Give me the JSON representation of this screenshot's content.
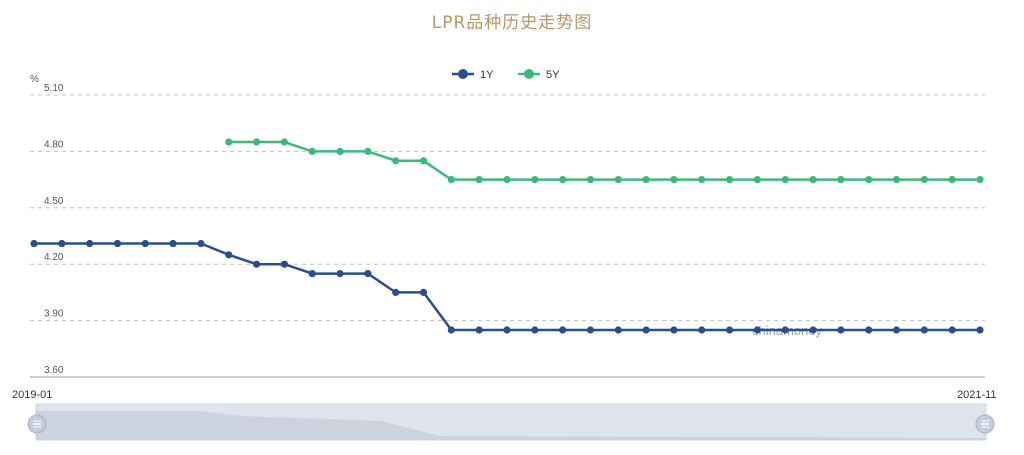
{
  "chart_data": {
    "type": "line",
    "title": "LPR品种历史走势图",
    "ylabel": "%",
    "ylim": [
      3.6,
      5.1
    ],
    "yticks": [
      "5.10",
      "4.80",
      "4.50",
      "4.20",
      "3.90",
      "3.60"
    ],
    "grid": true,
    "legend_placement": "top-center",
    "x_range_labels": [
      "2019-01",
      "2021-11"
    ],
    "watermark": "chinamoney",
    "series": [
      {
        "name": "1Y",
        "color": "#2a4f8c",
        "start_index": 0,
        "values": [
          4.31,
          4.31,
          4.31,
          4.31,
          4.31,
          4.31,
          4.31,
          4.25,
          4.2,
          4.2,
          4.15,
          4.15,
          4.15,
          4.05,
          4.05,
          3.85,
          3.85,
          3.85,
          3.85,
          3.85,
          3.85,
          3.85,
          3.85,
          3.85,
          3.85,
          3.85,
          3.85,
          3.85,
          3.85,
          3.85,
          3.85,
          3.85,
          3.85,
          3.85,
          3.85
        ]
      },
      {
        "name": "5Y",
        "color": "#3cb97a",
        "start_index": 7,
        "values": [
          4.85,
          4.85,
          4.85,
          4.8,
          4.8,
          4.8,
          4.75,
          4.75,
          4.65,
          4.65,
          4.65,
          4.65,
          4.65,
          4.65,
          4.65,
          4.65,
          4.65,
          4.65,
          4.65,
          4.65,
          4.65,
          4.65,
          4.65,
          4.65,
          4.65,
          4.65,
          4.65,
          4.65
        ]
      }
    ]
  }
}
